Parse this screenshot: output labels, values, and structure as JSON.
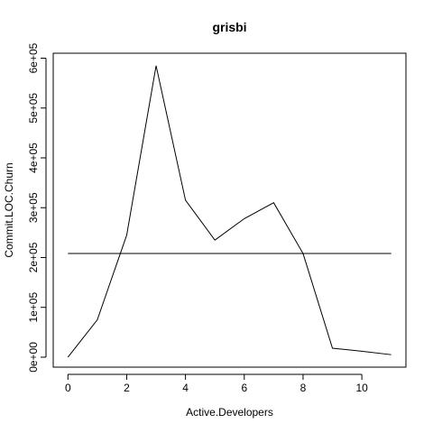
{
  "chart_data": {
    "type": "line",
    "title": "grisbi",
    "xlabel": "Active.Developers",
    "ylabel": "Commit.LOC.Churn",
    "xlim": [
      -0.5,
      11.5
    ],
    "ylim": [
      -20000,
      610000
    ],
    "x_ticks": [
      0,
      2,
      4,
      6,
      8,
      10
    ],
    "x_tick_labels": [
      "0",
      "2",
      "4",
      "6",
      "8",
      "10"
    ],
    "y_ticks": [
      0,
      100000,
      200000,
      300000,
      400000,
      500000,
      600000
    ],
    "y_tick_labels": [
      "0e+00",
      "1e+05",
      "2e+05",
      "3e+05",
      "4e+05",
      "5e+05",
      "6e+05"
    ],
    "grid": false,
    "series": [
      {
        "x": [
          0,
          1,
          2,
          3,
          4,
          5,
          6,
          7,
          8,
          9,
          10,
          11
        ],
        "values": [
          0,
          75000,
          245000,
          585000,
          315000,
          235000,
          278000,
          310000,
          208000,
          18000,
          12000,
          5000
        ]
      }
    ],
    "reference_line": {
      "y": 208000,
      "x_range": [
        0,
        11
      ]
    }
  }
}
